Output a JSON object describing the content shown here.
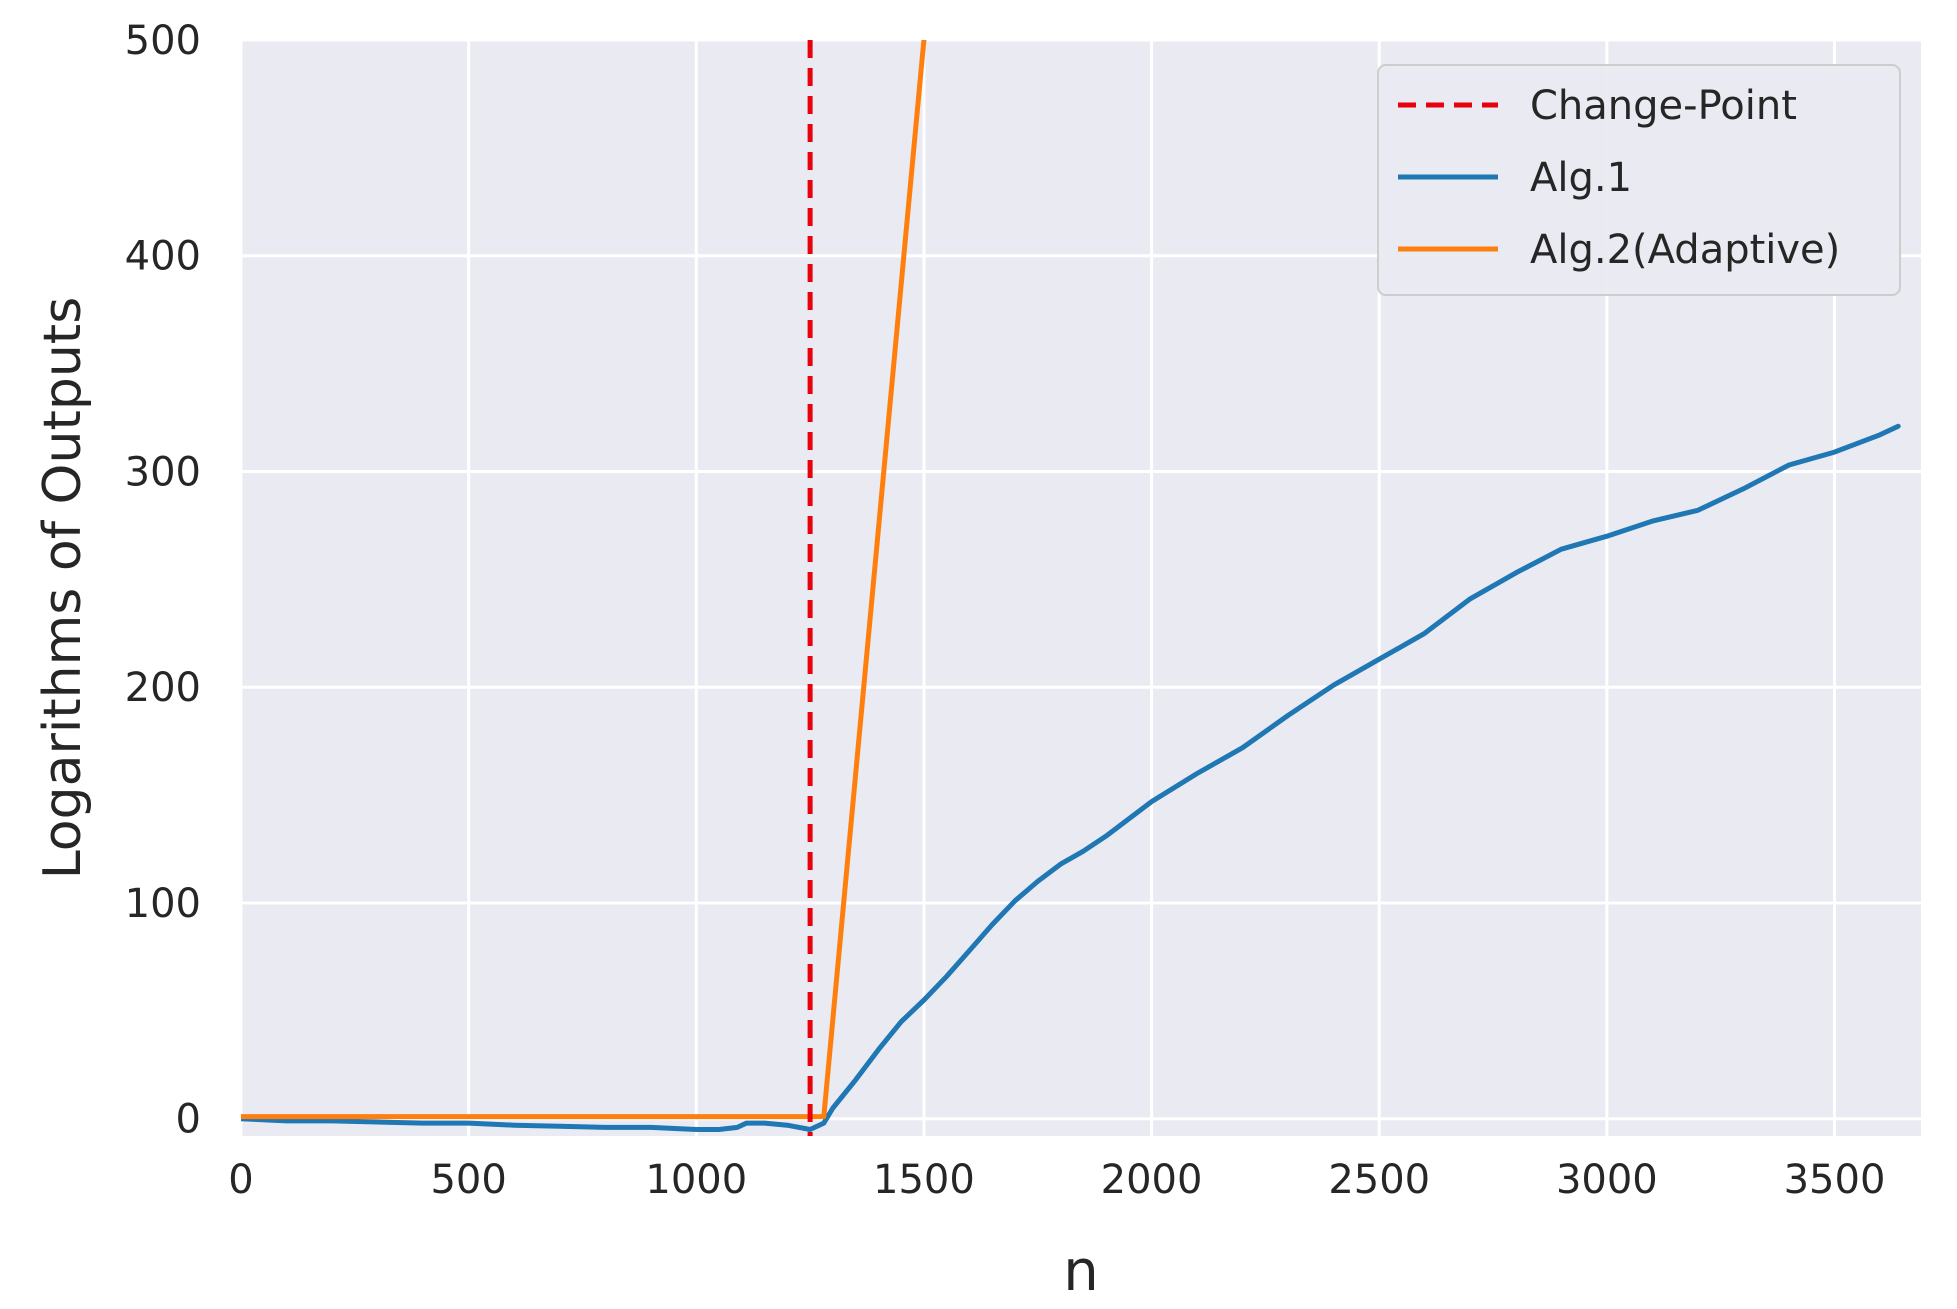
{
  "chart_data": {
    "type": "line",
    "title": "",
    "xlabel": "n",
    "ylabel": "Logarithms of Outputs",
    "xlim": [
      0,
      3690
    ],
    "ylim": [
      -8,
      500
    ],
    "xticks": [
      0,
      500,
      1000,
      1500,
      2000,
      2500,
      3000,
      3500
    ],
    "yticks": [
      0,
      100,
      200,
      300,
      400,
      500
    ],
    "xtick_labels": [
      "0",
      "500",
      "1000",
      "1500",
      "2000",
      "2500",
      "3000",
      "3500"
    ],
    "ytick_labels": [
      "0",
      "100",
      "200",
      "300",
      "400",
      "500"
    ],
    "grid": true,
    "legend_position": "top-right",
    "background_color": "#eaeaf2",
    "change_point": {
      "name": "Change-Point",
      "x": 1250,
      "color": "#e8000b",
      "style": "dashed"
    },
    "series": [
      {
        "name": "Alg.1",
        "color": "#1f77b4",
        "x": [
          0,
          100,
          200,
          300,
          400,
          500,
          600,
          700,
          800,
          900,
          1000,
          1050,
          1090,
          1110,
          1150,
          1200,
          1250,
          1280,
          1300,
          1350,
          1400,
          1450,
          1500,
          1550,
          1600,
          1650,
          1700,
          1750,
          1800,
          1850,
          1900,
          1950,
          2000,
          2100,
          2200,
          2300,
          2400,
          2500,
          2600,
          2700,
          2800,
          2900,
          3000,
          3100,
          3200,
          3300,
          3400,
          3500,
          3600,
          3640
        ],
        "y": [
          0,
          -1,
          -1,
          -1.5,
          -2,
          -2,
          -3,
          -3.5,
          -4,
          -4,
          -5,
          -5,
          -4,
          -2,
          -2,
          -3,
          -5,
          -2,
          5,
          18,
          32,
          45,
          55,
          66,
          78,
          90,
          101,
          110,
          118,
          124,
          131,
          139,
          147,
          160,
          172,
          187,
          201,
          213,
          225,
          241,
          253,
          264,
          270,
          277,
          282,
          292,
          303,
          309,
          317,
          321
        ]
      },
      {
        "name": "Alg.2(Adaptive)",
        "color": "#ff7f0e",
        "x": [
          0,
          1200,
          1280,
          1500
        ],
        "y": [
          1,
          1,
          1,
          500
        ]
      }
    ]
  }
}
